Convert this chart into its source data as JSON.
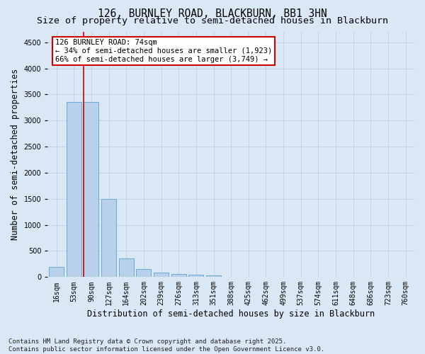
{
  "title_line1": "126, BURNLEY ROAD, BLACKBURN, BB1 3HN",
  "title_line2": "Size of property relative to semi-detached houses in Blackburn",
  "xlabel": "Distribution of semi-detached houses by size in Blackburn",
  "ylabel": "Number of semi-detached properties",
  "categories": [
    "16sqm",
    "53sqm",
    "90sqm",
    "127sqm",
    "164sqm",
    "202sqm",
    "239sqm",
    "276sqm",
    "313sqm",
    "351sqm",
    "388sqm",
    "425sqm",
    "462sqm",
    "499sqm",
    "537sqm",
    "574sqm",
    "611sqm",
    "648sqm",
    "686sqm",
    "723sqm",
    "760sqm"
  ],
  "values": [
    190,
    3360,
    3360,
    1500,
    360,
    150,
    80,
    55,
    40,
    30,
    5,
    0,
    0,
    0,
    0,
    0,
    0,
    0,
    0,
    0,
    0
  ],
  "bar_color": "#b8d0ea",
  "bar_edge_color": "#6aaad4",
  "bar_edge_width": 0.7,
  "grid_color": "#c0d4e8",
  "bg_color": "#dae8f5",
  "red_line_color": "#cc0000",
  "annotation_text": "126 BURNLEY ROAD: 74sqm\n← 34% of semi-detached houses are smaller (1,923)\n66% of semi-detached houses are larger (3,749) →",
  "annotation_box_color": "#ffffff",
  "annotation_border_color": "#cc0000",
  "footnote": "Contains HM Land Registry data © Crown copyright and database right 2025.\nContains public sector information licensed under the Open Government Licence v3.0.",
  "ylim": [
    0,
    4700
  ],
  "yticks": [
    0,
    500,
    1000,
    1500,
    2000,
    2500,
    3000,
    3500,
    4000,
    4500
  ],
  "title_fontsize": 10.5,
  "subtitle_fontsize": 9.5,
  "tick_fontsize": 7,
  "label_fontsize": 8.5,
  "annotation_fontsize": 7.5,
  "footnote_fontsize": 6.5
}
